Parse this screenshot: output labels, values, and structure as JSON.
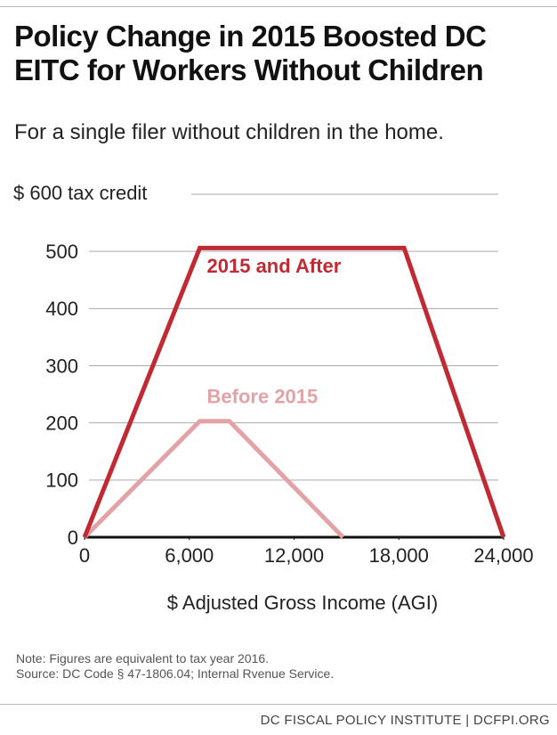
{
  "chart_data": {
    "type": "line",
    "title": "Policy Change in 2015 Boosted DC EITC for Workers Without Children",
    "subtitle": "For a single filer without children in the home.",
    "x_label": "$ Adjusted Gross Income (AGI)",
    "xlim": [
      0,
      24000
    ],
    "xticks": [
      0,
      {
        "value": 6000,
        "label": "6,000"
      },
      {
        "value": 12000,
        "label": "12,000"
      },
      {
        "value": 18000,
        "label": "18,000"
      },
      {
        "value": 24000,
        "label": "24,000"
      }
    ],
    "ylim": [
      0,
      600
    ],
    "yticks": [
      0,
      100,
      200,
      300,
      400,
      500,
      {
        "value": 600,
        "label": "$ 600 tax credit"
      }
    ],
    "grid": true,
    "series": [
      {
        "name": "2015 and After",
        "color": "#bf2a33",
        "x": [
          0,
          6600,
          18300,
          24000
        ],
        "values": [
          0,
          506,
          506,
          0
        ]
      },
      {
        "name": "Before 2015",
        "color": "#e3a3a6",
        "x": [
          0,
          6600,
          8300,
          14800
        ],
        "values": [
          0,
          203,
          203,
          0
        ]
      }
    ]
  },
  "notes": [
    "Note: Figures are equivalent to tax year 2016.",
    "Source: DC Code § 47-1806.04; Internal Rvenue Service."
  ],
  "footer": "DC FISCAL POLICY INSTITUTE | DCFPI.ORG"
}
